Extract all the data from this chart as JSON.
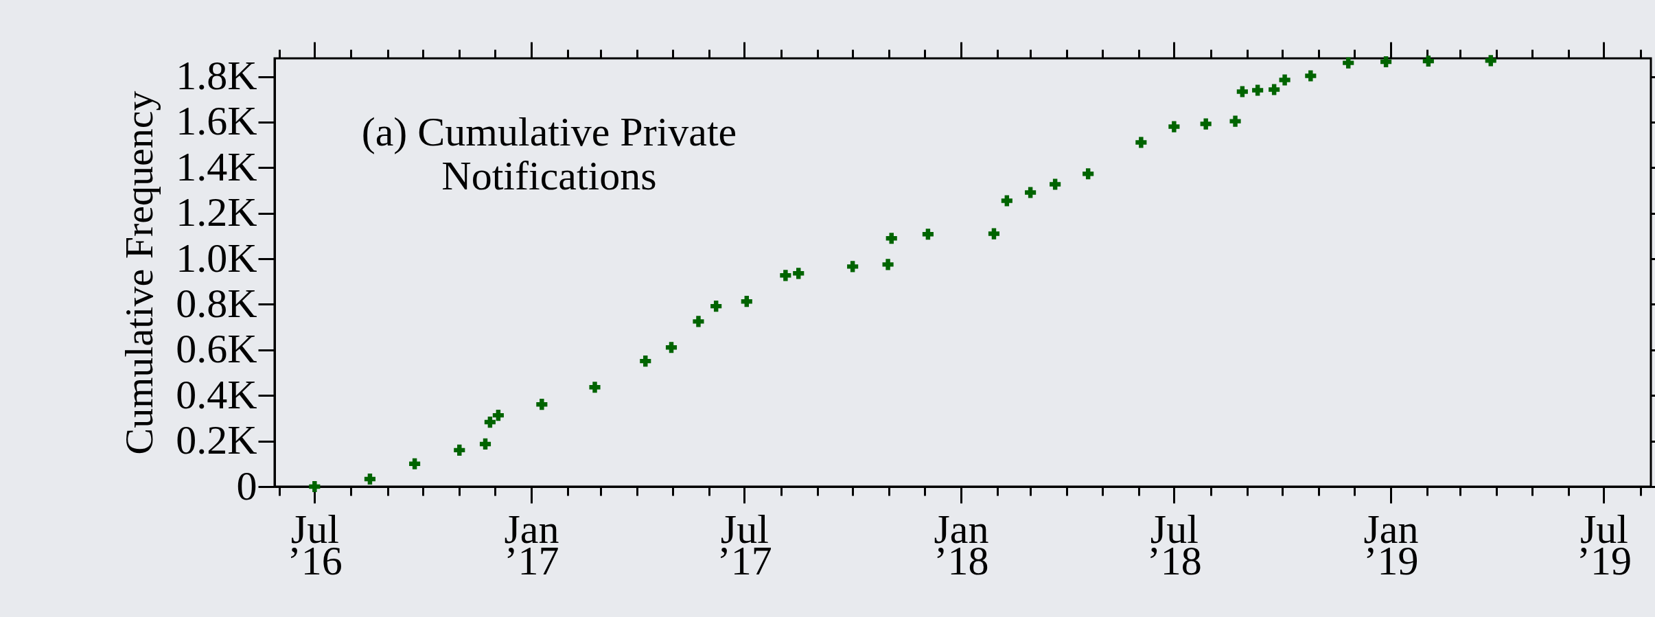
{
  "chart_data": {
    "type": "scatter",
    "title": "(a) Cumulative Private Notifications",
    "ylabel": "Cumulative Frequency",
    "x": [
      "2016-07-01",
      "2016-08-17",
      "2016-09-24",
      "2016-11-01",
      "2016-11-23",
      "2016-11-27",
      "2016-12-04",
      "2017-01-10",
      "2017-02-24",
      "2017-04-08",
      "2017-04-30",
      "2017-05-23",
      "2017-06-07",
      "2017-07-03",
      "2017-08-05",
      "2017-08-16",
      "2017-10-01",
      "2017-10-31",
      "2017-11-03",
      "2017-12-04",
      "2018-01-29",
      "2018-02-09",
      "2018-03-01",
      "2018-03-22",
      "2018-04-19",
      "2018-06-03",
      "2018-07-01",
      "2018-07-28",
      "2018-08-22",
      "2018-08-28",
      "2018-09-10",
      "2018-09-24",
      "2018-10-03",
      "2018-10-25",
      "2018-11-26",
      "2018-12-28",
      "2019-02-02",
      "2019-03-27"
    ],
    "series": [
      {
        "color": "#006400",
        "values": [
          0,
          33,
          100,
          160,
          187,
          283,
          313,
          361,
          436,
          551,
          611,
          725,
          792,
          813,
          927,
          936,
          966,
          975,
          1090,
          1108,
          1110,
          1255,
          1291,
          1327,
          1373,
          1511,
          1580,
          1592,
          1604,
          1734,
          1740,
          1743,
          1785,
          1803,
          1860,
          1865,
          1868,
          1870
        ]
      }
    ],
    "marker": "cross",
    "grid": false,
    "xlim": [
      "2016-05-28",
      "2019-08-10"
    ],
    "ylim": [
      0,
      1880
    ],
    "xticks": [
      {
        "value": "2016-06",
        "label": null
      },
      {
        "value": "2016-07",
        "label": "Jul ’16"
      },
      {
        "value": "2016-08",
        "label": null
      },
      {
        "value": "2016-09",
        "label": null
      },
      {
        "value": "2016-10",
        "label": null
      },
      {
        "value": "2016-11",
        "label": null
      },
      {
        "value": "2016-12",
        "label": null
      },
      {
        "value": "2017-01",
        "label": "Jan ’17"
      },
      {
        "value": "2017-02",
        "label": null
      },
      {
        "value": "2017-03",
        "label": null
      },
      {
        "value": "2017-04",
        "label": null
      },
      {
        "value": "2017-05",
        "label": null
      },
      {
        "value": "2017-06",
        "label": null
      },
      {
        "value": "2017-07",
        "label": "Jul ’17"
      },
      {
        "value": "2017-08",
        "label": null
      },
      {
        "value": "2017-09",
        "label": null
      },
      {
        "value": "2017-10",
        "label": null
      },
      {
        "value": "2017-11",
        "label": null
      },
      {
        "value": "2017-12",
        "label": null
      },
      {
        "value": "2018-01",
        "label": "Jan ’18"
      },
      {
        "value": "2018-02",
        "label": null
      },
      {
        "value": "2018-03",
        "label": null
      },
      {
        "value": "2018-04",
        "label": null
      },
      {
        "value": "2018-05",
        "label": null
      },
      {
        "value": "2018-06",
        "label": null
      },
      {
        "value": "2018-07",
        "label": "Jul ’18"
      },
      {
        "value": "2018-08",
        "label": null
      },
      {
        "value": "2018-09",
        "label": null
      },
      {
        "value": "2018-10",
        "label": null
      },
      {
        "value": "2018-11",
        "label": null
      },
      {
        "value": "2018-12",
        "label": null
      },
      {
        "value": "2019-01",
        "label": "Jan ’19"
      },
      {
        "value": "2019-02",
        "label": null
      },
      {
        "value": "2019-03",
        "label": null
      },
      {
        "value": "2019-04",
        "label": null
      },
      {
        "value": "2019-05",
        "label": null
      },
      {
        "value": "2019-06",
        "label": null
      },
      {
        "value": "2019-07",
        "label": "Jul ’19"
      },
      {
        "value": "2019-08",
        "label": null
      }
    ],
    "yticks": [
      {
        "value": 0,
        "label": "0"
      },
      {
        "value": 200,
        "label": "0.2K"
      },
      {
        "value": 400,
        "label": "0.4K"
      },
      {
        "value": 600,
        "label": "0.6K"
      },
      {
        "value": 800,
        "label": "0.8K"
      },
      {
        "value": 1000,
        "label": "1.0K"
      },
      {
        "value": 1200,
        "label": "1.2K"
      },
      {
        "value": 1400,
        "label": "1.4K"
      },
      {
        "value": 1600,
        "label": "1.6K"
      },
      {
        "value": 1800,
        "label": "1.8K"
      }
    ]
  }
}
